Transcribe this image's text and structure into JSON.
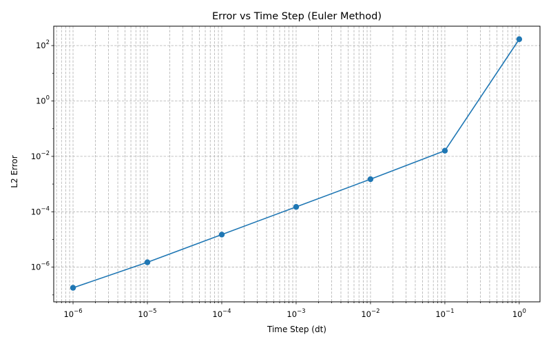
{
  "chart_data": {
    "type": "line",
    "title": "Error vs Time Step (Euler Method)",
    "xlabel": "Time Step (dt)",
    "ylabel": "L2 Error",
    "x_scale": "log",
    "y_scale": "log",
    "xlim": [
      5.5e-07,
      1.9
    ],
    "ylim": [
      5.6e-08,
      501
    ],
    "x_ticks": [
      {
        "value": 1e-06,
        "base": "10",
        "exp": "−6"
      },
      {
        "value": 1e-05,
        "base": "10",
        "exp": "−5"
      },
      {
        "value": 0.0001,
        "base": "10",
        "exp": "−4"
      },
      {
        "value": 0.001,
        "base": "10",
        "exp": "−3"
      },
      {
        "value": 0.01,
        "base": "10",
        "exp": "−2"
      },
      {
        "value": 0.1,
        "base": "10",
        "exp": "−1"
      },
      {
        "value": 1,
        "base": "10",
        "exp": "0"
      }
    ],
    "y_ticks": [
      {
        "value": 1e-06,
        "base": "10",
        "exp": "−6"
      },
      {
        "value": 0.0001,
        "base": "10",
        "exp": "−4"
      },
      {
        "value": 0.01,
        "base": "10",
        "exp": "−2"
      },
      {
        "value": 1,
        "base": "10",
        "exp": "0"
      },
      {
        "value": 100,
        "base": "10",
        "exp": "2"
      }
    ],
    "grid": true,
    "grid_style": "dashed, major and minor",
    "series": [
      {
        "color": "#1f77b4",
        "marker": "circle",
        "x": [
          1e-06,
          1e-05,
          0.0001,
          0.001,
          0.01,
          0.1,
          1
        ],
        "y": [
          1.8e-07,
          1.5e-06,
          1.5e-05,
          0.00015,
          0.0015,
          0.016,
          170
        ]
      }
    ]
  }
}
